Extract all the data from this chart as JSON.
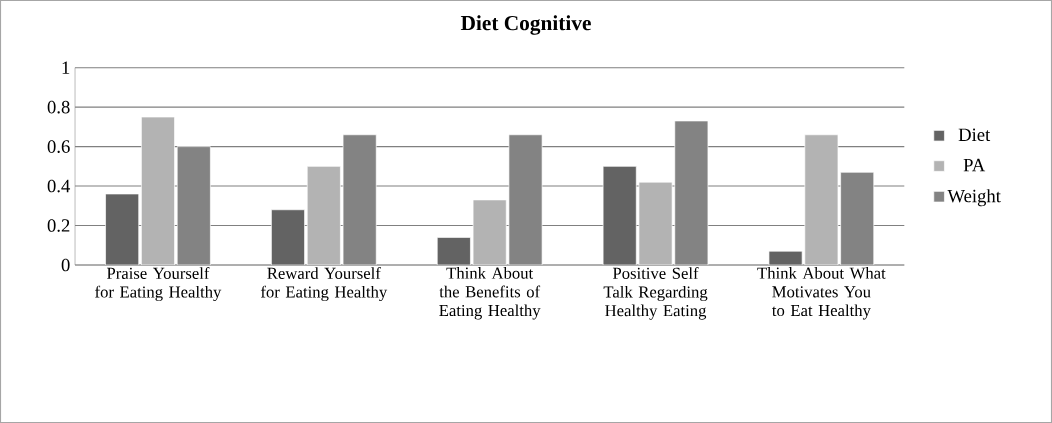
{
  "chart_data": {
    "type": "bar",
    "title": "Diet Cognitive",
    "categories": [
      "Praise Yourself for Eating Healthy",
      "Reward Yourself for Eating Healthy",
      "Think About the Benefits of Eating Healthy",
      "Positive Self Talk Regarding Healthy Eating",
      "Think About What Motivates You to Eat Healthy"
    ],
    "series": [
      {
        "name": "Diet",
        "color": "#636363",
        "values": [
          0.36,
          0.28,
          0.14,
          0.5,
          0.07
        ]
      },
      {
        "name": "PA",
        "color": "#b3b3b3",
        "values": [
          0.75,
          0.5,
          0.33,
          0.42,
          0.66
        ]
      },
      {
        "name": "Weight",
        "color": "#838383",
        "values": [
          0.6,
          0.66,
          0.66,
          0.73,
          0.47
        ]
      }
    ],
    "ylim": [
      0,
      1
    ],
    "yticks": [
      0,
      0.2,
      0.4,
      0.6,
      0.8,
      1
    ],
    "grid": "y",
    "legend": "right"
  }
}
